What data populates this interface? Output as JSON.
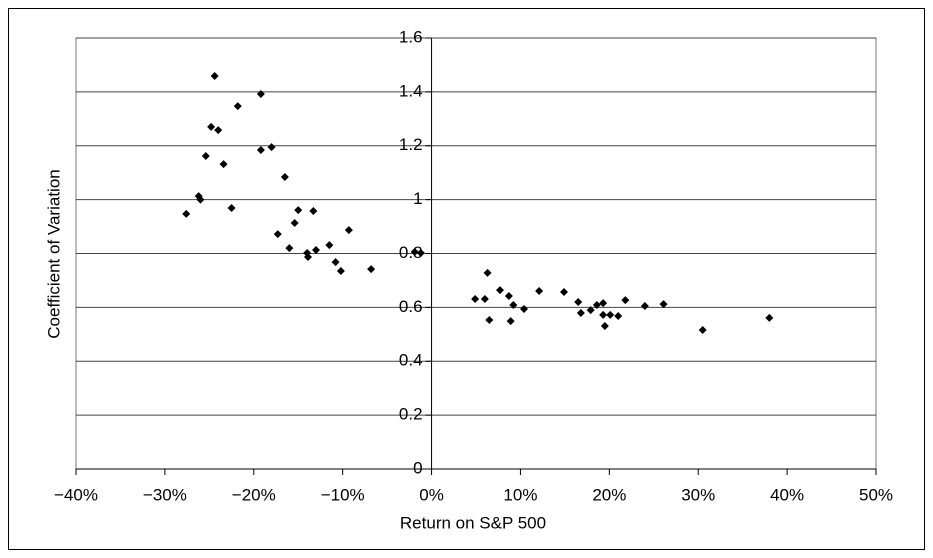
{
  "chart_data": {
    "type": "scatter",
    "x_label": "Return on S&P 500",
    "y_label": "Coefficient of Variation",
    "xlim": [
      -40,
      50
    ],
    "xticks": [
      {
        "value": -40,
        "label": "−40%"
      },
      {
        "value": -30,
        "label": "−30%"
      },
      {
        "value": -20,
        "label": "−20%"
      },
      {
        "value": -10,
        "label": "−10%"
      },
      {
        "value": 0,
        "label": "0%"
      },
      {
        "value": 10,
        "label": "10%"
      },
      {
        "value": 20,
        "label": "20%"
      },
      {
        "value": 30,
        "label": "30%"
      },
      {
        "value": 40,
        "label": "40%"
      },
      {
        "value": 50,
        "label": "50%"
      }
    ],
    "ylim": [
      0,
      1.6
    ],
    "yticks": [
      0,
      0.2,
      0.4,
      0.6,
      0.8,
      1,
      1.2,
      1.4,
      1.6
    ],
    "grid": true,
    "color": "#000000",
    "x": [
      -27.6,
      -26.2,
      -26.0,
      -25.4,
      -24.8,
      -24.4,
      -24.0,
      -23.4,
      -22.5,
      -21.8,
      -19.2,
      -19.2,
      -18.0,
      -17.3,
      -16.5,
      -16.0,
      -15.4,
      -15.0,
      -14.0,
      -13.9,
      -13.3,
      -13.0,
      -11.5,
      -10.8,
      -10.2,
      -9.3,
      -6.8,
      -1.9,
      -1.2,
      4.9,
      6.0,
      6.3,
      6.5,
      7.7,
      8.7,
      8.9,
      9.2,
      10.4,
      12.1,
      14.9,
      16.5,
      16.8,
      17.9,
      18.6,
      19.3,
      19.3,
      19.5,
      20.1,
      21.0,
      21.8,
      24.0,
      26.1,
      30.5,
      38.0
    ],
    "y": [
      0.947,
      1.013,
      1.0,
      1.162,
      1.27,
      1.459,
      1.258,
      1.132,
      0.969,
      1.347,
      1.392,
      1.184,
      1.195,
      0.872,
      1.084,
      0.82,
      0.913,
      0.961,
      0.802,
      0.787,
      0.958,
      0.813,
      0.831,
      0.768,
      0.735,
      0.887,
      0.742,
      0.806,
      0.802,
      0.631,
      0.631,
      0.728,
      0.553,
      0.664,
      0.642,
      0.549,
      0.609,
      0.594,
      0.661,
      0.657,
      0.62,
      0.579,
      0.59,
      0.609,
      0.616,
      0.572,
      0.531,
      0.572,
      0.568,
      0.627,
      0.605,
      0.612,
      0.516,
      0.561
    ]
  }
}
